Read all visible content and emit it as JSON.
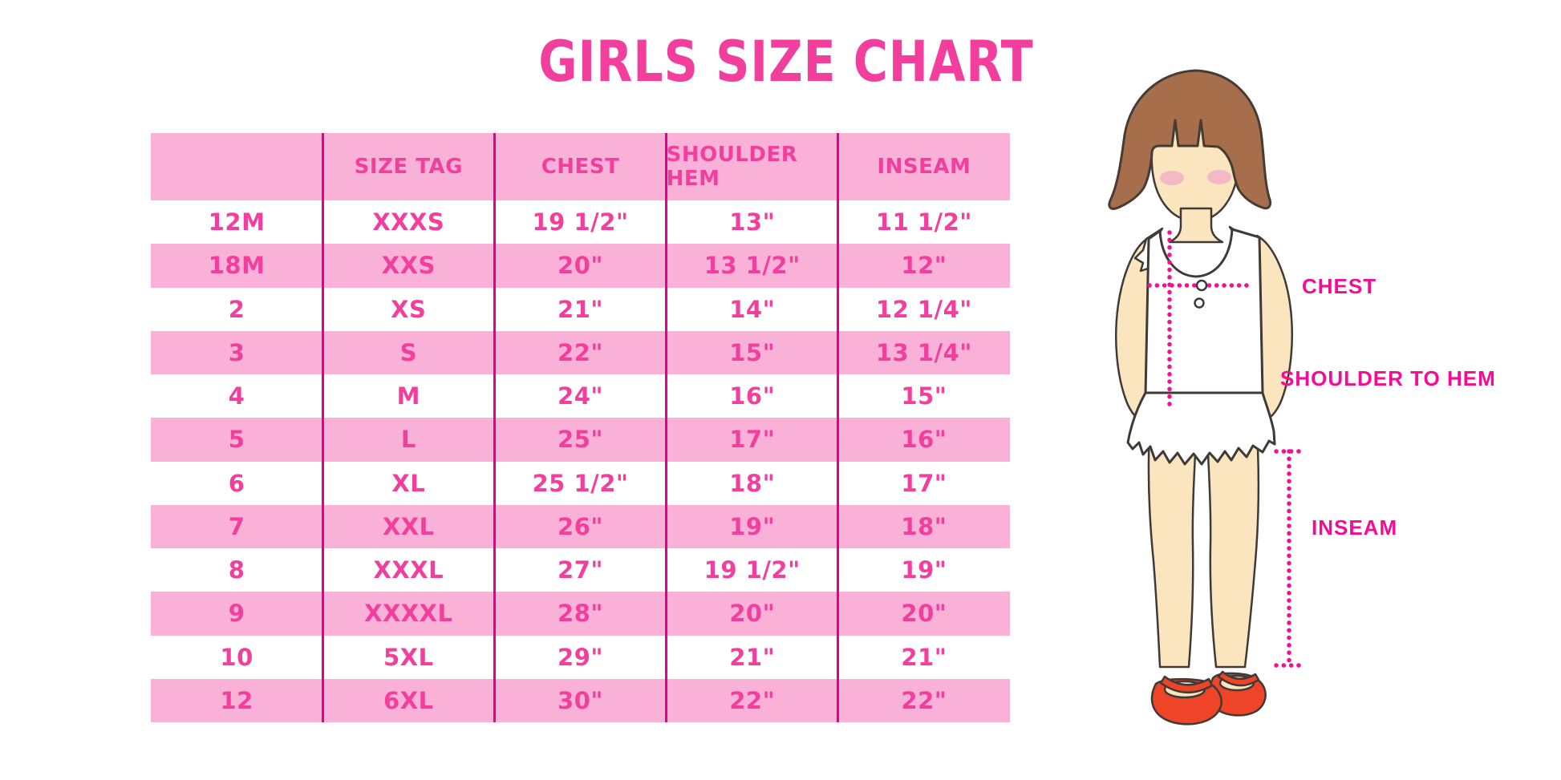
{
  "title": "GIRLS SIZE CHART",
  "chart_data": {
    "type": "table",
    "title": "GIRLS SIZE CHART",
    "columns": [
      "",
      "SIZE TAG",
      "CHEST",
      "SHOULDER HEM",
      "INSEAM"
    ],
    "rows": [
      [
        "12M",
        "XXXS",
        "19 1/2\"",
        "13\"",
        "11 1/2\""
      ],
      [
        "18M",
        "XXS",
        "20\"",
        "13 1/2\"",
        "12\""
      ],
      [
        "2",
        "XS",
        "21\"",
        "14\"",
        "12 1/4\""
      ],
      [
        "3",
        "S",
        "22\"",
        "15\"",
        "13 1/4\""
      ],
      [
        "4",
        "M",
        "24\"",
        "16\"",
        "15\""
      ],
      [
        "5",
        "L",
        "25\"",
        "17\"",
        "16\""
      ],
      [
        "6",
        "XL",
        "25 1/2\"",
        "18\"",
        "17\""
      ],
      [
        "7",
        "XXL",
        "26\"",
        "19\"",
        "18\""
      ],
      [
        "8",
        "XXXL",
        "27\"",
        "19 1/2\"",
        "19\""
      ],
      [
        "9",
        "XXXXL",
        "28\"",
        "20\"",
        "20\""
      ],
      [
        "10",
        "5XL",
        "29\"",
        "21\"",
        "21\""
      ],
      [
        "12",
        "6XL",
        "30\"",
        "22\"",
        "22\""
      ]
    ],
    "layout": "striped rows alternating white and pink, magenta column dividers, no horizontal rules",
    "units": "inches"
  },
  "figure": {
    "labels": {
      "chest": "CHEST",
      "shoulder_to_hem": "SHOULDER TO HEM",
      "inseam": "INSEAM"
    }
  },
  "colors": {
    "title_pink": "#F23F9D",
    "stripe_pink": "#FAB1D7",
    "divider_magenta": "#E2008F",
    "table_text_pink": "#F23F9D",
    "label_magenta": "#F20C96",
    "dotted_line_magenta": "#EE1295",
    "hair_brown": "#A76E4C",
    "skin": "#FBE5BE",
    "blush": "#F3AEC6",
    "shoe_red": "#EE4428",
    "background": "#FFFFFF"
  }
}
